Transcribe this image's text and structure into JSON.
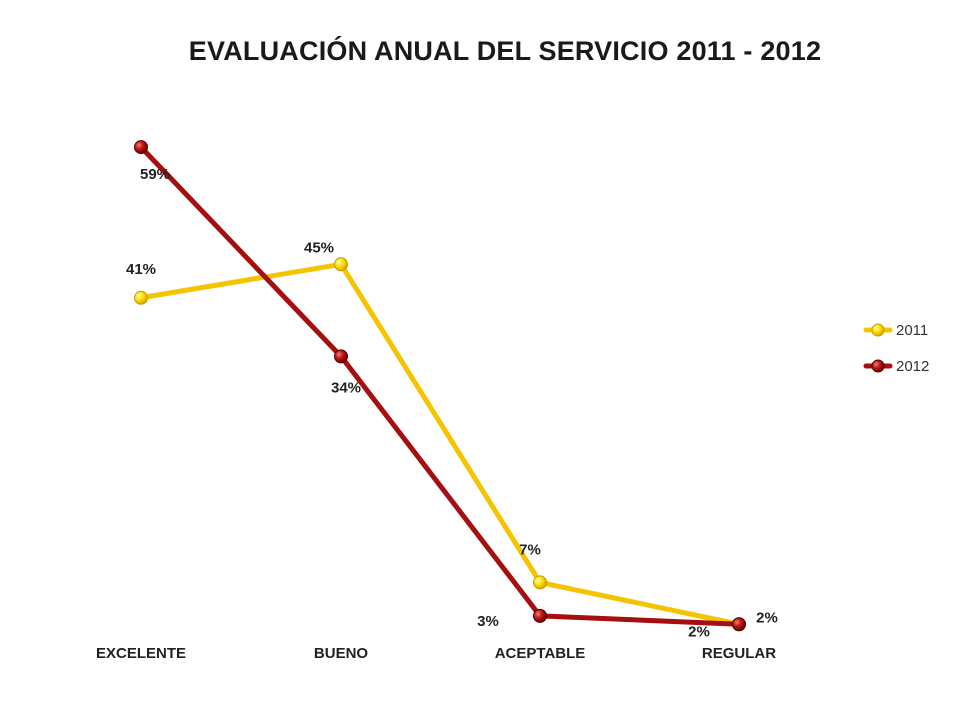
{
  "chart_data": {
    "type": "line",
    "title": "EVALUACIÓN ANUAL DEL SERVICIO  2011 - 2012",
    "categories": [
      "EXCELENTE",
      "BUENO",
      "ACEPTABLE",
      "REGULAR"
    ],
    "ylim": [
      0,
      70
    ],
    "grid": false,
    "legend_position": "right",
    "series": [
      {
        "name": "2011",
        "color": "#f5c400",
        "marker_color": "#ffe600",
        "values": [
          41,
          45,
          7,
          2
        ],
        "labels": [
          "41%",
          "45%",
          "7%",
          "2%"
        ]
      },
      {
        "name": "2012",
        "color": "#a50f0f",
        "marker_color": "#c41a1a",
        "values": [
          59,
          34,
          3,
          2
        ],
        "labels": [
          "59%",
          "34%",
          "3%",
          "2%"
        ]
      }
    ]
  }
}
